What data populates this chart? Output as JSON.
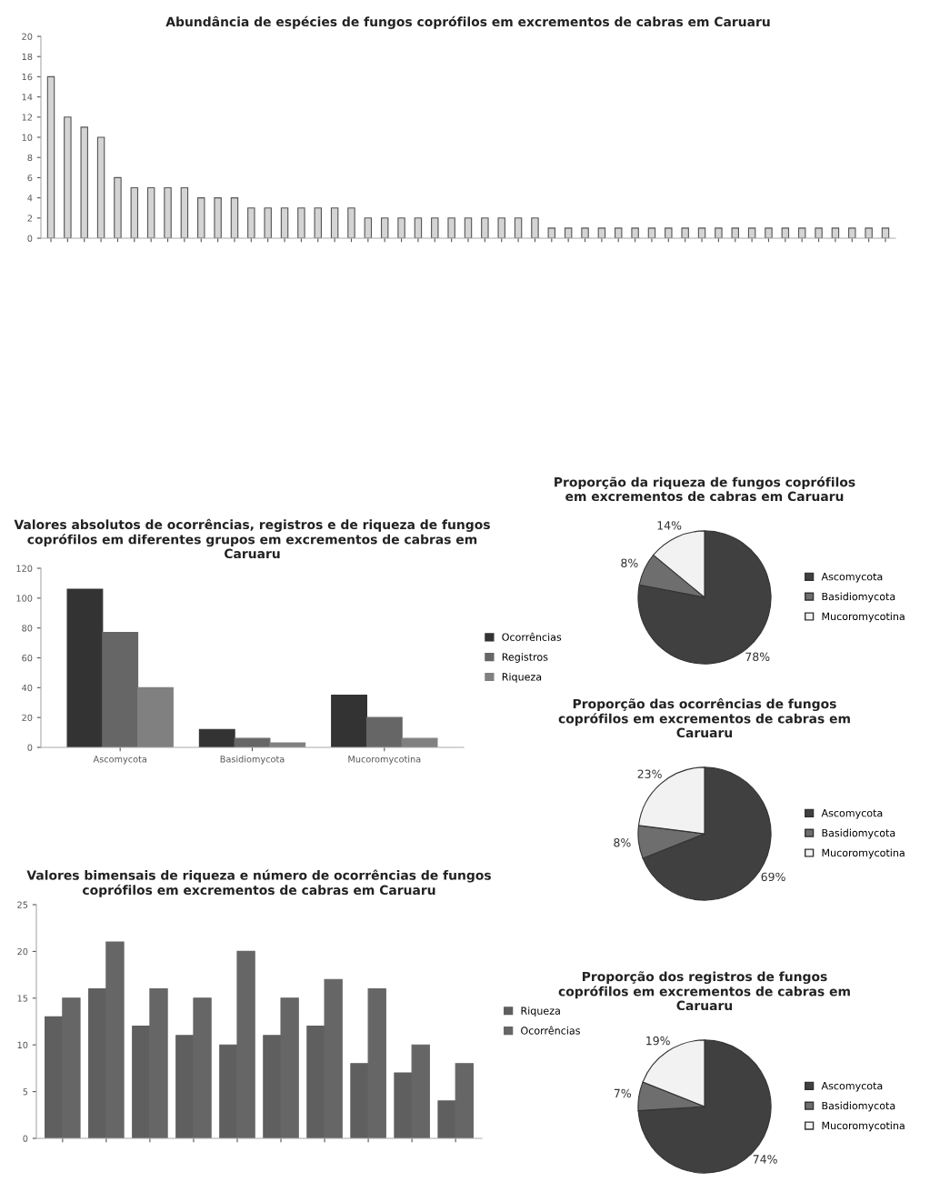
{
  "chart_data": [
    {
      "type": "bar",
      "title": "Abundância de espécies de fungos coprófilos em excrementos de cabras em Caruaru",
      "categories": [
        null,
        null,
        null,
        null,
        null,
        null,
        null,
        null,
        null,
        null,
        null,
        null,
        null,
        null,
        null,
        null,
        null,
        null,
        null,
        null,
        null,
        null,
        null,
        null,
        null,
        null,
        null,
        null,
        null,
        null,
        null,
        null,
        null,
        null,
        null,
        null,
        null,
        null,
        null,
        null,
        null,
        null,
        null,
        null,
        null,
        null,
        null,
        null,
        null,
        null,
        null
      ],
      "values": [
        16,
        12,
        11,
        10,
        6,
        5,
        5,
        5,
        5,
        4,
        4,
        4,
        3,
        3,
        3,
        3,
        3,
        3,
        3,
        2,
        2,
        2,
        2,
        2,
        2,
        2,
        2,
        2,
        2,
        2,
        1,
        1,
        1,
        1,
        1,
        1,
        1,
        1,
        1,
        1,
        1,
        1,
        1,
        1,
        1,
        1,
        1,
        1,
        1,
        1,
        1
      ],
      "color": "#d4d4d4",
      "ylim": [
        0,
        20
      ],
      "yticks": [
        0,
        2,
        4,
        6,
        8,
        10,
        12,
        14,
        16,
        18,
        20
      ],
      "grid": false
    },
    {
      "type": "bar",
      "title": "Valores absolutos de ocorrências, registros e de riqueza de fungos coprófilos em diferentes grupos em excrementos de cabras em Caruaru",
      "categories": [
        "Ascomycota",
        "Basidiomycota",
        "Mucoromycotina"
      ],
      "series": [
        {
          "name": "Ocorrências",
          "color": "#333333",
          "values": [
            106,
            12,
            35
          ]
        },
        {
          "name": "Registros",
          "color": "#666666",
          "values": [
            77,
            6,
            20
          ]
        },
        {
          "name": "Riqueza",
          "color": "#808080",
          "values": [
            40,
            3,
            6
          ]
        }
      ],
      "ylim": [
        0,
        120
      ],
      "yticks": [
        0,
        20,
        40,
        60,
        80,
        100,
        120
      ],
      "grid": false,
      "legend": "right"
    },
    {
      "type": "bar",
      "title": "Valores bimensais de riqueza e número de ocorrências de fungos coprófilos em excrementos de cabras em Caruaru",
      "categories": [
        null,
        null,
        null,
        null,
        null,
        null,
        null,
        null,
        null,
        null
      ],
      "series": [
        {
          "name": "Riqueza",
          "color": "#5f5f5f",
          "values": [
            13,
            16,
            12,
            11,
            10,
            11,
            12,
            8,
            7,
            4
          ]
        },
        {
          "name": "Ocorrências",
          "color": "#666666",
          "values": [
            15,
            21,
            16,
            15,
            20,
            15,
            17,
            16,
            10,
            8
          ]
        }
      ],
      "ylim": [
        0,
        25
      ],
      "yticks": [
        0,
        5,
        10,
        15,
        20,
        25
      ],
      "grid": false,
      "legend": "right"
    },
    {
      "type": "pie",
      "title": "Proporção da riqueza de fungos coprófilos em excrementos de cabras em Caruaru",
      "categories": [
        "Ascomycota",
        "Basidiomycota",
        "Mucoromycotina"
      ],
      "values": [
        78,
        8,
        14
      ],
      "value_labels": [
        "78%",
        "8%",
        "14%"
      ],
      "colors": [
        "#404040",
        "#6e6e6e",
        "#f2f2f2"
      ],
      "legend": "right"
    },
    {
      "type": "pie",
      "title": "Proporção das ocorrências de fungos coprófilos em excrementos de cabras em Caruaru",
      "categories": [
        "Ascomycota",
        "Basidiomycota",
        "Mucoromycotina"
      ],
      "values": [
        69,
        8,
        23
      ],
      "value_labels": [
        "69%",
        "8%",
        "23%"
      ],
      "colors": [
        "#404040",
        "#6e6e6e",
        "#f2f2f2"
      ],
      "legend": "right"
    },
    {
      "type": "pie",
      "title": "Proporção dos registros de fungos coprófilos em excrementos de cabras em Caruaru",
      "categories": [
        "Ascomycota",
        "Basidiomycota",
        "Mucoromycotina"
      ],
      "values": [
        74,
        7,
        19
      ],
      "value_labels": [
        "74%",
        "7%",
        "19%"
      ],
      "colors": [
        "#404040",
        "#6e6e6e",
        "#f2f2f2"
      ],
      "legend": "right"
    }
  ]
}
